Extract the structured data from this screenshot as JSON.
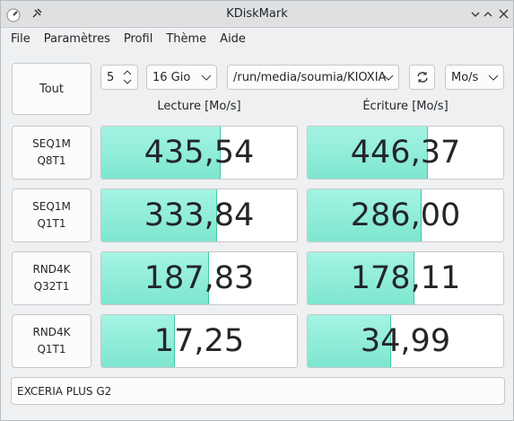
{
  "window": {
    "title": "KDiskMark"
  },
  "menu": [
    "File",
    "Paramètres",
    "Profil",
    "Thème",
    "Aide"
  ],
  "controls": {
    "all_button": "Tout",
    "loops": 5,
    "size": "16 Gio",
    "path": "/run/media/soumia/KIOXIA",
    "unit": "Mo/s"
  },
  "headers": {
    "read": "Lecture [Mo/s]",
    "write": "Écriture [Mo/s]"
  },
  "tests": [
    {
      "label": [
        "SEQ1M",
        "Q8T1"
      ],
      "read": {
        "value": 435.54,
        "label": "435,54"
      },
      "write": {
        "value": 446.37,
        "label": "446,37"
      }
    },
    {
      "label": [
        "SEQ1M",
        "Q1T1"
      ],
      "read": {
        "value": 333.84,
        "label": "333,84"
      },
      "write": {
        "value": 286.0,
        "label": "286,00"
      }
    },
    {
      "label": [
        "RND4K",
        "Q32T1"
      ],
      "read": {
        "value": 187.83,
        "label": "187,83"
      },
      "write": {
        "value": 178.11,
        "label": "178,11"
      }
    },
    {
      "label": [
        "RND4K",
        "Q1T1"
      ],
      "read": {
        "value": 17.25,
        "label": "17,25"
      },
      "write": {
        "value": 34.99,
        "label": "34,99"
      }
    }
  ],
  "device": "EXCERIA PLUS G2"
}
